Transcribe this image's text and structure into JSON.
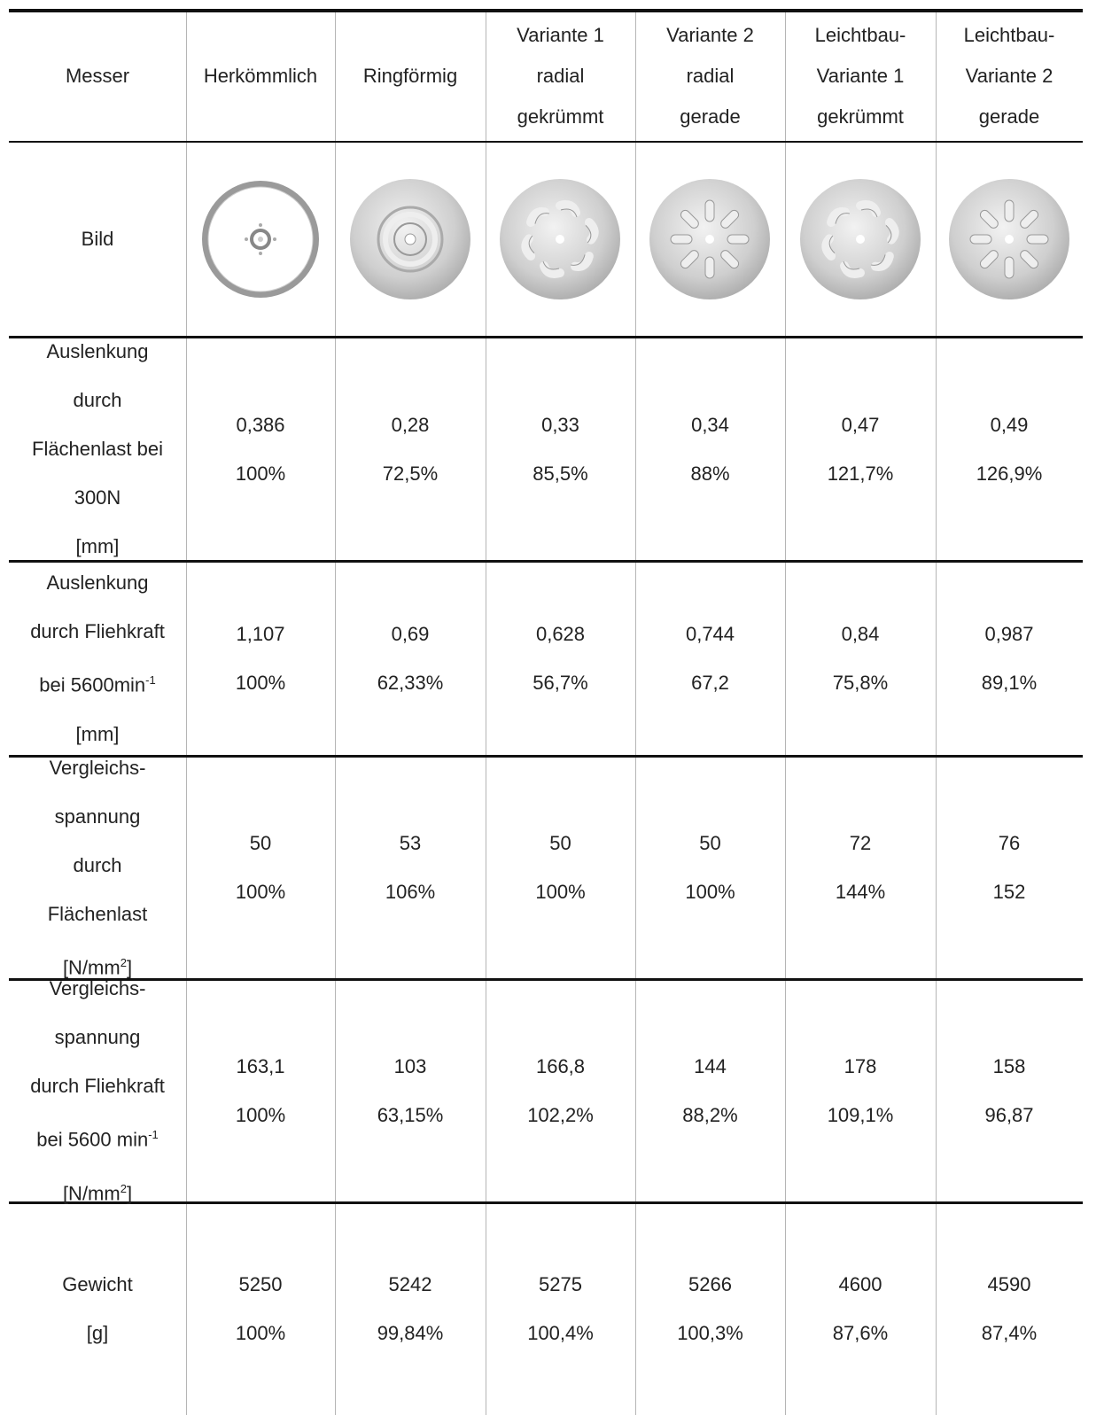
{
  "header": {
    "cells": [
      [
        "Messer"
      ],
      [
        "Herkömmlich"
      ],
      [
        "Ringförmig"
      ],
      [
        "Variante 1",
        "radial",
        "gekrümmt"
      ],
      [
        "Variante 2",
        "radial",
        "gerade"
      ],
      [
        "Leichtbau-",
        "Variante 1",
        "gekrümmt"
      ],
      [
        "Leichtbau-",
        "Variante 2",
        "gerade"
      ]
    ]
  },
  "image_row": {
    "label": "Bild"
  },
  "rows": [
    {
      "label": [
        "Auslenkung",
        "durch",
        "Flächenlast bei",
        "300N",
        "[mm]"
      ],
      "values": [
        [
          "0,386",
          "100%"
        ],
        [
          "0,28",
          "72,5%"
        ],
        [
          "0,33",
          "85,5%"
        ],
        [
          "0,34",
          "88%"
        ],
        [
          "0,47",
          "121,7%"
        ],
        [
          "0,49",
          "126,9%"
        ]
      ]
    },
    {
      "label": [
        "Auslenkung",
        "durch Fliehkraft",
        {
          "text": "bei 5600min",
          "sup": "-1"
        },
        "[mm]"
      ],
      "values": [
        [
          "1,107",
          "100%"
        ],
        [
          "0,69",
          "62,33%"
        ],
        [
          "0,628",
          "56,7%"
        ],
        [
          "0,744",
          "67,2"
        ],
        [
          "0,84",
          "75,8%"
        ],
        [
          "0,987",
          "89,1%"
        ]
      ]
    },
    {
      "label": [
        "Vergleichs-",
        "spannung",
        "durch",
        "Flächenlast",
        {
          "text": "[N/mm",
          "sup": "2",
          "tail": "]"
        }
      ],
      "values": [
        [
          "50",
          "100%"
        ],
        [
          "53",
          "106%"
        ],
        [
          "50",
          "100%"
        ],
        [
          "50",
          "100%"
        ],
        [
          "72",
          "144%"
        ],
        [
          "76",
          "152"
        ]
      ]
    },
    {
      "label": [
        "Vergleichs-",
        "spannung",
        "durch Fliehkraft",
        {
          "text": "bei 5600 min",
          "sup": "-1"
        },
        {
          "text": "[N/mm",
          "sup": "2",
          "tail": "]"
        }
      ],
      "values": [
        [
          "163,1",
          "100%"
        ],
        [
          "103",
          "63,15%"
        ],
        [
          "166,8",
          "102,2%"
        ],
        [
          "144",
          "88,2%"
        ],
        [
          "178",
          "109,1%"
        ],
        [
          "158",
          "96,87"
        ]
      ]
    },
    {
      "label": [
        "Gewicht",
        "[g]"
      ],
      "values": [
        [
          "5250",
          "100%"
        ],
        [
          "5242",
          "99,84%"
        ],
        [
          "5275",
          "100,4%"
        ],
        [
          "5266",
          "100,3%"
        ],
        [
          "4600",
          "87,6%"
        ],
        [
          "4590",
          "87,4%"
        ]
      ]
    }
  ]
}
